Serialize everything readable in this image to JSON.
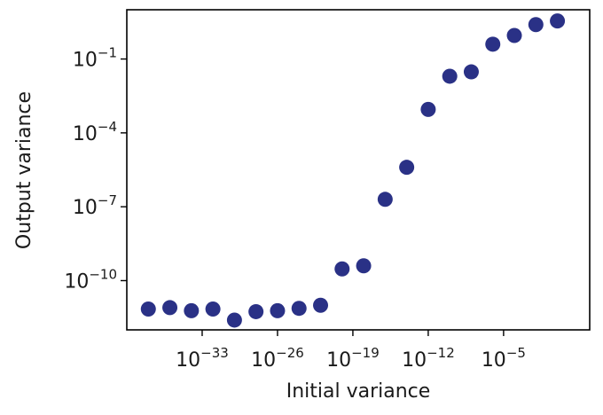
{
  "chart_data": {
    "type": "scatter",
    "title": "",
    "xlabel": "Initial variance",
    "ylabel": "Output variance",
    "xscale": "log",
    "yscale": "log",
    "xlim": [
      1e-40,
      1000.0
    ],
    "ylim": [
      1e-12,
      10.0
    ],
    "grid": false,
    "xticks": [
      {
        "base": "10",
        "exp": "−33",
        "value": 1e-33
      },
      {
        "base": "10",
        "exp": "−26",
        "value": 1e-26
      },
      {
        "base": "10",
        "exp": "−19",
        "value": 1e-19
      },
      {
        "base": "10",
        "exp": "−12",
        "value": 1e-12
      },
      {
        "base": "10",
        "exp": "−5",
        "value": 1e-05
      }
    ],
    "yticks": [
      {
        "base": "10",
        "exp": "−1",
        "value": 0.1
      },
      {
        "base": "10",
        "exp": "−4",
        "value": 0.0001
      },
      {
        "base": "10",
        "exp": "−7",
        "value": 1e-07
      },
      {
        "base": "10",
        "exp": "−10",
        "value": 1e-10
      }
    ],
    "color": "#2a3186",
    "series": [
      {
        "x": [
          1e-38,
          1e-36,
          1e-34,
          1e-32,
          1e-30,
          1e-28,
          1e-26,
          1e-24,
          1e-22,
          1e-20,
          1e-18,
          1e-16,
          1e-14,
          1e-12,
          1e-10,
          1e-08,
          1e-06,
          0.0001,
          0.01,
          1.0
        ],
        "y": [
          7e-12,
          8e-12,
          6e-12,
          7e-12,
          2.5e-12,
          5.5e-12,
          6e-12,
          7.5e-12,
          1e-11,
          3e-10,
          4e-10,
          2e-07,
          4e-06,
          0.0009,
          0.02,
          0.03,
          0.4,
          0.9,
          2.5,
          3.5
        ]
      }
    ]
  }
}
